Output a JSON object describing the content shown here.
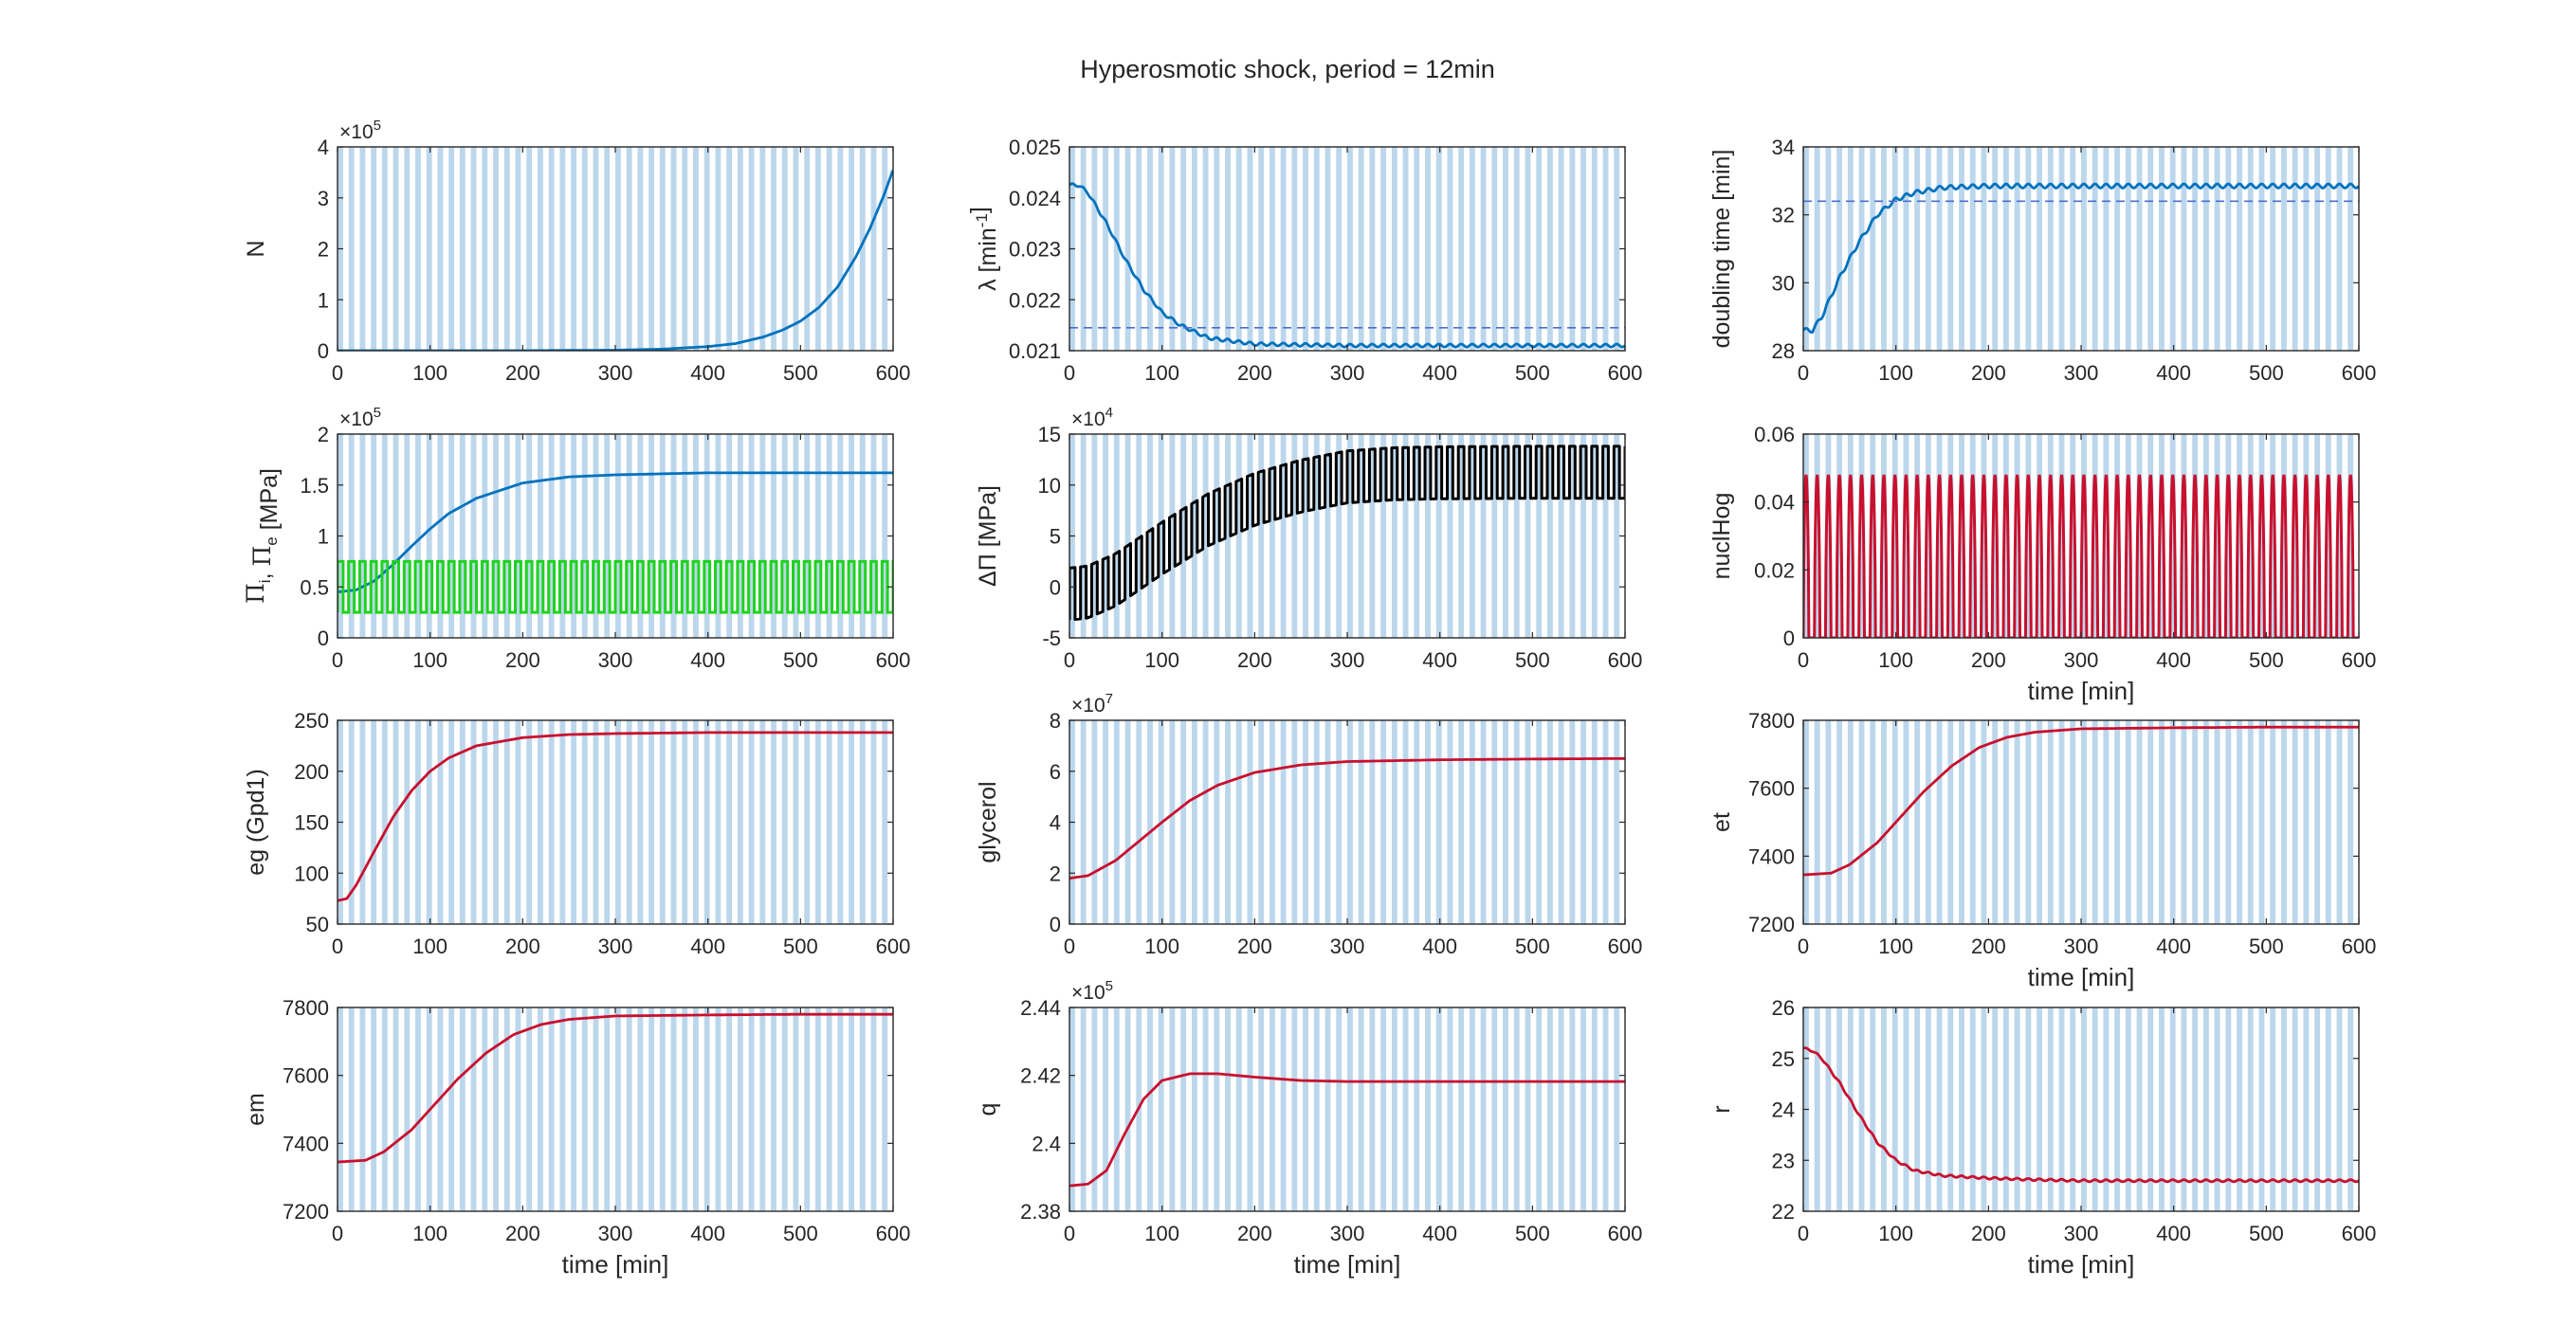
{
  "figure": {
    "title": "Hyperosmotic shock, period = 12min",
    "shade_color": "#bcd7ec",
    "shade_period": 12,
    "shade_width": 6
  },
  "chart_data": [
    {
      "id": "N",
      "type": "line",
      "ylabel": "N",
      "xlabel": "",
      "xlim": [
        0,
        600
      ],
      "ylim": [
        0,
        4
      ],
      "xticks": [
        0,
        100,
        200,
        300,
        400,
        500,
        600
      ],
      "yticks": [
        0,
        1,
        2,
        3,
        4
      ],
      "exponent": "5",
      "series": [
        {
          "color": "#0072bd",
          "x": [
            0,
            100,
            200,
            300,
            350,
            400,
            430,
            460,
            480,
            500,
            520,
            540,
            560,
            575,
            590,
            600
          ],
          "y": [
            0.0,
            0.0,
            0.0,
            0.01,
            0.03,
            0.08,
            0.14,
            0.27,
            0.4,
            0.58,
            0.85,
            1.25,
            1.85,
            2.4,
            3.05,
            3.55
          ]
        }
      ]
    },
    {
      "id": "lambda",
      "type": "line",
      "ylabel": "λ [min^-1]",
      "xlabel": "",
      "xlim": [
        0,
        600
      ],
      "ylim": [
        0.021,
        0.025
      ],
      "xticks": [
        0,
        100,
        200,
        300,
        400,
        500,
        600
      ],
      "yticks": [
        0.021,
        0.022,
        0.023,
        0.024,
        0.025
      ],
      "ytick_labels": [
        "0.021",
        "0.022",
        "0.023",
        "0.024",
        "0.025"
      ],
      "series": [
        {
          "color": "#0072bd",
          "x": [
            0,
            10,
            20,
            40,
            60,
            80,
            100,
            120,
            150,
            200,
            300,
            400,
            500,
            600
          ],
          "y": [
            0.02425,
            0.02425,
            0.0241,
            0.0235,
            0.0228,
            0.0222,
            0.02175,
            0.0215,
            0.02125,
            0.02113,
            0.0211,
            0.0211,
            0.0211,
            0.0211
          ],
          "osc_amp": 3e-05
        },
        {
          "color": "#4a6fd0",
          "dashed": true,
          "x": [
            0,
            600
          ],
          "y": [
            0.02145,
            0.02145
          ]
        }
      ]
    },
    {
      "id": "doubling",
      "type": "line",
      "ylabel": "doubling time [min]",
      "xlabel": "",
      "xlim": [
        0,
        600
      ],
      "ylim": [
        28,
        34
      ],
      "xticks": [
        0,
        100,
        200,
        300,
        400,
        500,
        600
      ],
      "yticks": [
        28,
        30,
        32,
        34
      ],
      "series": [
        {
          "color": "#0072bd",
          "x": [
            0,
            10,
            20,
            40,
            60,
            80,
            100,
            120,
            150,
            200,
            300,
            400,
            500,
            600
          ],
          "y": [
            28.6,
            28.6,
            29.0,
            30.2,
            31.2,
            32.0,
            32.45,
            32.65,
            32.8,
            32.85,
            32.85,
            32.85,
            32.85,
            32.85
          ],
          "osc_amp": 0.06
        },
        {
          "color": "#4a6fd0",
          "dashed": true,
          "x": [
            0,
            600
          ],
          "y": [
            32.4,
            32.4
          ]
        }
      ]
    },
    {
      "id": "Pi",
      "type": "line",
      "ylabel": "Πi, Πe [MPa]",
      "xlabel": "",
      "xlim": [
        0,
        600
      ],
      "ylim": [
        0,
        2
      ],
      "xticks": [
        0,
        100,
        200,
        300,
        400,
        500,
        600
      ],
      "yticks": [
        0,
        0.5,
        1,
        1.5,
        2
      ],
      "ytick_labels": [
        "0",
        "0.5",
        "1",
        "1.5",
        "2"
      ],
      "exponent": "5",
      "series": [
        {
          "color": "#0072bd",
          "x": [
            0,
            20,
            40,
            60,
            80,
            100,
            120,
            150,
            200,
            250,
            300,
            400,
            500,
            600
          ],
          "y": [
            0.45,
            0.47,
            0.56,
            0.72,
            0.9,
            1.07,
            1.22,
            1.37,
            1.52,
            1.58,
            1.6,
            1.62,
            1.62,
            1.62
          ]
        },
        {
          "color": "#1fd31f",
          "square": true,
          "low": 0.25,
          "high": 0.75,
          "x": [],
          "y": []
        }
      ]
    },
    {
      "id": "dPi",
      "type": "line",
      "ylabel": "ΔΠ [MPa]",
      "xlabel": "",
      "xlim": [
        0,
        600
      ],
      "ylim": [
        -5,
        15
      ],
      "xticks": [
        0,
        100,
        200,
        300,
        400,
        500,
        600
      ],
      "yticks": [
        -5,
        0,
        5,
        10,
        15
      ],
      "exponent": "4",
      "series": [
        {
          "color": "#000000",
          "band": true,
          "x": [
            0,
            20,
            50,
            100,
            150,
            200,
            250,
            300,
            350,
            400,
            500,
            600
          ],
          "y": [
            -0.7,
            -0.5,
            0.7,
            3.8,
            6.6,
            8.6,
            9.9,
            10.8,
            11.1,
            11.2,
            11.25,
            11.25
          ],
          "band_half": 2.55
        }
      ]
    },
    {
      "id": "nuclHog",
      "type": "line",
      "ylabel": "nuclHog",
      "xlabel": "time [min]",
      "xlim": [
        0,
        600
      ],
      "ylim": [
        0,
        0.06
      ],
      "xticks": [
        0,
        100,
        200,
        300,
        400,
        500,
        600
      ],
      "yticks": [
        0,
        0.02,
        0.04,
        0.06
      ],
      "ytick_labels": [
        "0",
        "0.02",
        "0.04",
        "0.06"
      ],
      "series": [
        {
          "color": "#c8102e",
          "pulse": true,
          "peak": 0.048,
          "x": [],
          "y": []
        }
      ]
    },
    {
      "id": "eg",
      "type": "line",
      "ylabel": "eg (Gpd1)",
      "xlabel": "",
      "xlim": [
        0,
        600
      ],
      "ylim": [
        50,
        250
      ],
      "xticks": [
        0,
        100,
        200,
        300,
        400,
        500,
        600
      ],
      "yticks": [
        50,
        100,
        150,
        200,
        250
      ],
      "series": [
        {
          "color": "#c8102e",
          "x": [
            0,
            10,
            20,
            40,
            60,
            80,
            100,
            120,
            150,
            200,
            250,
            300,
            400,
            500,
            600
          ],
          "y": [
            73,
            75,
            88,
            122,
            155,
            181,
            200,
            213,
            225,
            233,
            236,
            237,
            238,
            238,
            238
          ]
        }
      ]
    },
    {
      "id": "glycerol",
      "type": "line",
      "ylabel": "glycerol",
      "xlabel": "",
      "xlim": [
        0,
        600
      ],
      "ylim": [
        0,
        8
      ],
      "xticks": [
        0,
        100,
        200,
        300,
        400,
        500,
        600
      ],
      "yticks": [
        0,
        2,
        4,
        6,
        8
      ],
      "exponent": "7",
      "series": [
        {
          "color": "#c8102e",
          "x": [
            0,
            20,
            50,
            80,
            100,
            130,
            160,
            200,
            250,
            300,
            400,
            500,
            600
          ],
          "y": [
            1.8,
            1.9,
            2.5,
            3.4,
            4.0,
            4.85,
            5.45,
            5.95,
            6.25,
            6.38,
            6.45,
            6.48,
            6.5
          ]
        }
      ]
    },
    {
      "id": "et",
      "type": "line",
      "ylabel": "et",
      "xlabel": "time [min]",
      "xlim": [
        0,
        600
      ],
      "ylim": [
        7200,
        7800
      ],
      "xticks": [
        0,
        100,
        200,
        300,
        400,
        500,
        600
      ],
      "yticks": [
        7200,
        7400,
        7600,
        7800
      ],
      "series": [
        {
          "color": "#c8102e",
          "x": [
            0,
            30,
            50,
            80,
            100,
            130,
            160,
            190,
            220,
            250,
            300,
            400,
            500,
            600
          ],
          "y": [
            7345,
            7350,
            7375,
            7440,
            7500,
            7590,
            7665,
            7720,
            7750,
            7765,
            7775,
            7778,
            7780,
            7780
          ]
        }
      ]
    },
    {
      "id": "em",
      "type": "line",
      "ylabel": "em",
      "xlabel": "time [min]",
      "xlim": [
        0,
        600
      ],
      "ylim": [
        7200,
        7800
      ],
      "xticks": [
        0,
        100,
        200,
        300,
        400,
        500,
        600
      ],
      "yticks": [
        7200,
        7400,
        7600,
        7800
      ],
      "series": [
        {
          "color": "#c8102e",
          "x": [
            0,
            30,
            50,
            80,
            100,
            130,
            160,
            190,
            220,
            250,
            300,
            400,
            500,
            600
          ],
          "y": [
            7345,
            7350,
            7375,
            7440,
            7500,
            7590,
            7665,
            7720,
            7750,
            7765,
            7775,
            7778,
            7780,
            7780
          ]
        }
      ]
    },
    {
      "id": "q",
      "type": "line",
      "ylabel": "q",
      "xlabel": "time [min]",
      "xlim": [
        0,
        600
      ],
      "ylim": [
        2.38,
        2.44
      ],
      "xticks": [
        0,
        100,
        200,
        300,
        400,
        500,
        600
      ],
      "yticks": [
        2.38,
        2.4,
        2.42,
        2.44
      ],
      "ytick_labels": [
        "2.38",
        "2.4",
        "2.42",
        "2.44"
      ],
      "exponent": "5",
      "series": [
        {
          "color": "#c8102e",
          "x": [
            0,
            20,
            40,
            60,
            80,
            100,
            130,
            160,
            200,
            250,
            300,
            400,
            500,
            600
          ],
          "y": [
            2.3875,
            2.388,
            2.392,
            2.403,
            2.413,
            2.4185,
            2.4205,
            2.4205,
            2.4195,
            2.4185,
            2.4182,
            2.4182,
            2.4182,
            2.4182
          ]
        }
      ]
    },
    {
      "id": "r",
      "type": "line",
      "ylabel": "r",
      "xlabel": "time [min]",
      "xlim": [
        0,
        600
      ],
      "ylim": [
        22,
        26
      ],
      "xticks": [
        0,
        100,
        200,
        300,
        400,
        500,
        600
      ],
      "yticks": [
        22,
        23,
        24,
        25,
        26
      ],
      "series": [
        {
          "color": "#c8102e",
          "x": [
            0,
            10,
            20,
            40,
            60,
            80,
            100,
            120,
            150,
            200,
            250,
            300,
            400,
            500,
            600
          ],
          "y": [
            25.2,
            25.15,
            25.0,
            24.5,
            23.9,
            23.35,
            23.0,
            22.8,
            22.7,
            22.65,
            22.62,
            22.6,
            22.6,
            22.6,
            22.6
          ],
          "osc_amp": 0.02
        }
      ]
    }
  ]
}
